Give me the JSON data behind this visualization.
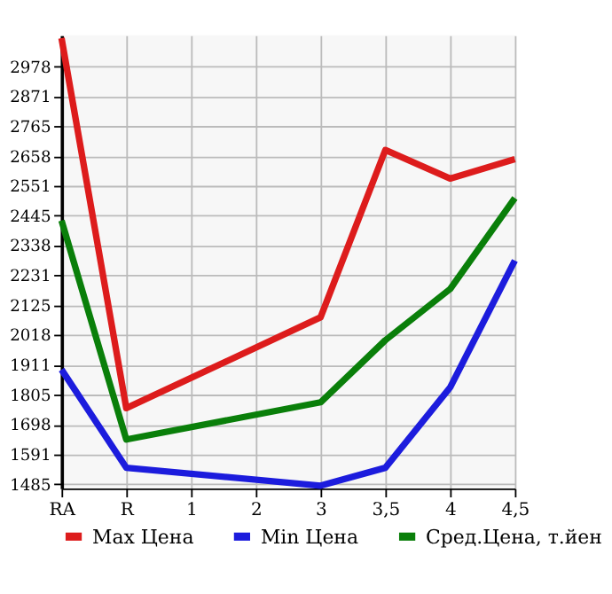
{
  "chart_data": {
    "type": "line",
    "categories": [
      "RA",
      "R",
      "1",
      "2",
      "3",
      "3,5",
      "4",
      "4,5"
    ],
    "series": [
      {
        "name": "Max Цена",
        "color": "#dd1c1c",
        "values": [
          3080,
          1757,
          null,
          null,
          2082,
          2680,
          2578,
          2647
        ]
      },
      {
        "name": "Min Цена",
        "color": "#1c1cdd",
        "values": [
          1895,
          1544,
          null,
          null,
          1480,
          1544,
          1831,
          2285
        ]
      },
      {
        "name": "Сред.Цена, т.йен",
        "color": "#0a7f0a",
        "values": [
          2428,
          1645,
          null,
          null,
          1778,
          2000,
          2183,
          2508
        ]
      }
    ],
    "ylim": [
      1470,
      3090
    ],
    "yticks": [
      1485,
      1591,
      1698,
      1805,
      1911,
      2018,
      2125,
      2231,
      2338,
      2445,
      2551,
      2658,
      2765,
      2871,
      2978
    ],
    "grid": true,
    "legend": "bottom",
    "marker": "none",
    "line_style": "solid"
  }
}
